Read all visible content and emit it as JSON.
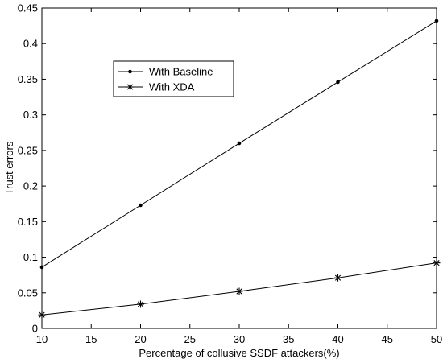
{
  "chart_data": {
    "type": "line",
    "xlabel": "Percentage of collusive SSDF attackers(%)",
    "ylabel": "Trust errors",
    "xlim": [
      10,
      50
    ],
    "ylim": [
      0,
      0.45
    ],
    "xticks": [
      10,
      15,
      20,
      25,
      30,
      35,
      40,
      45,
      50
    ],
    "xtick_labels": [
      "10",
      "15",
      "20",
      "25",
      "30",
      "35",
      "40",
      "45",
      "50"
    ],
    "yticks": [
      0,
      0.05,
      0.1,
      0.15,
      0.2,
      0.25,
      0.3,
      0.35,
      0.4,
      0.45
    ],
    "ytick_labels": [
      "0",
      "0.05",
      "0.1",
      "0.15",
      "0.2",
      "0.25",
      "0.3",
      "0.35",
      "0.4",
      "0.45"
    ],
    "grid": false,
    "legend_position": "upper-left",
    "x": [
      10,
      20,
      30,
      40,
      50
    ],
    "series": [
      {
        "name": "With Baseline",
        "values": [
          0.086,
          0.173,
          0.26,
          0.346,
          0.432
        ],
        "marker": "dot",
        "color": "#000000"
      },
      {
        "name": "With XDA",
        "values": [
          0.019,
          0.034,
          0.052,
          0.071,
          0.092
        ],
        "marker": "asterisk",
        "color": "#000000"
      }
    ]
  }
}
